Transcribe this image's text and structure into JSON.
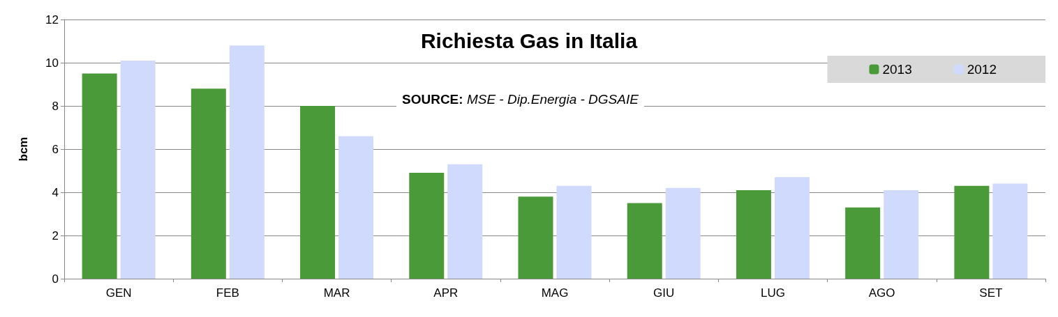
{
  "chart_data": {
    "type": "bar",
    "title": "Richiesta Gas in Italia",
    "ylabel": "bcm",
    "annotations": [
      "SOURCE: MSE - Dip.Energia - DGSAIE"
    ],
    "categories": [
      "GEN",
      "FEB",
      "MAR",
      "APR",
      "MAG",
      "GIU",
      "LUG",
      "AGO",
      "SET"
    ],
    "series": [
      {
        "name": "2013",
        "color": "#4a9a3a",
        "values": [
          9.5,
          8.8,
          8.0,
          4.9,
          3.8,
          3.5,
          4.1,
          3.3,
          4.3
        ]
      },
      {
        "name": "2012",
        "color": "#cfdafc",
        "values": [
          10.1,
          10.8,
          6.6,
          5.3,
          4.3,
          4.2,
          4.7,
          4.1,
          4.4
        ]
      }
    ],
    "ylim": [
      0,
      12
    ],
    "yticks": [
      0,
      2,
      4,
      6,
      8,
      10,
      12
    ],
    "grid": "y",
    "legend": "top right"
  }
}
